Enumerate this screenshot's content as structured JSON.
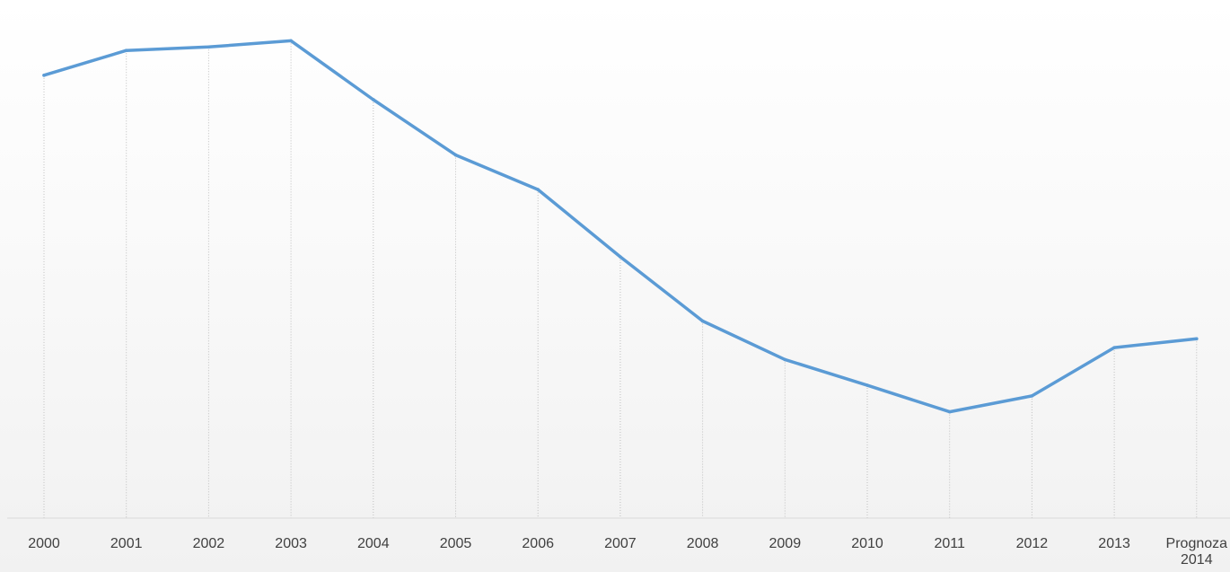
{
  "chart_data": {
    "type": "line",
    "categories": [
      "2000",
      "2001",
      "2002",
      "2003",
      "2004",
      "2005",
      "2006",
      "2007",
      "2008",
      "2009",
      "2010",
      "2011",
      "2012",
      "2013",
      "Prognoza 2014"
    ],
    "series": [
      {
        "values": [
          1000,
          1056,
          1064,
          1078,
          945,
          820,
          742,
          590,
          445,
          358,
          300,
          240,
          276,
          385,
          405
        ]
      }
    ],
    "ylim": [
      0,
      1170
    ],
    "grid": "vertical-dotted",
    "legend": "none",
    "title": "",
    "xlabel": "",
    "ylabel": "",
    "colors": {
      "line": "#5b9bd5",
      "gridline": "#bfbfbf",
      "axis": "#d9d9d9",
      "tick_text": "#404040"
    }
  }
}
